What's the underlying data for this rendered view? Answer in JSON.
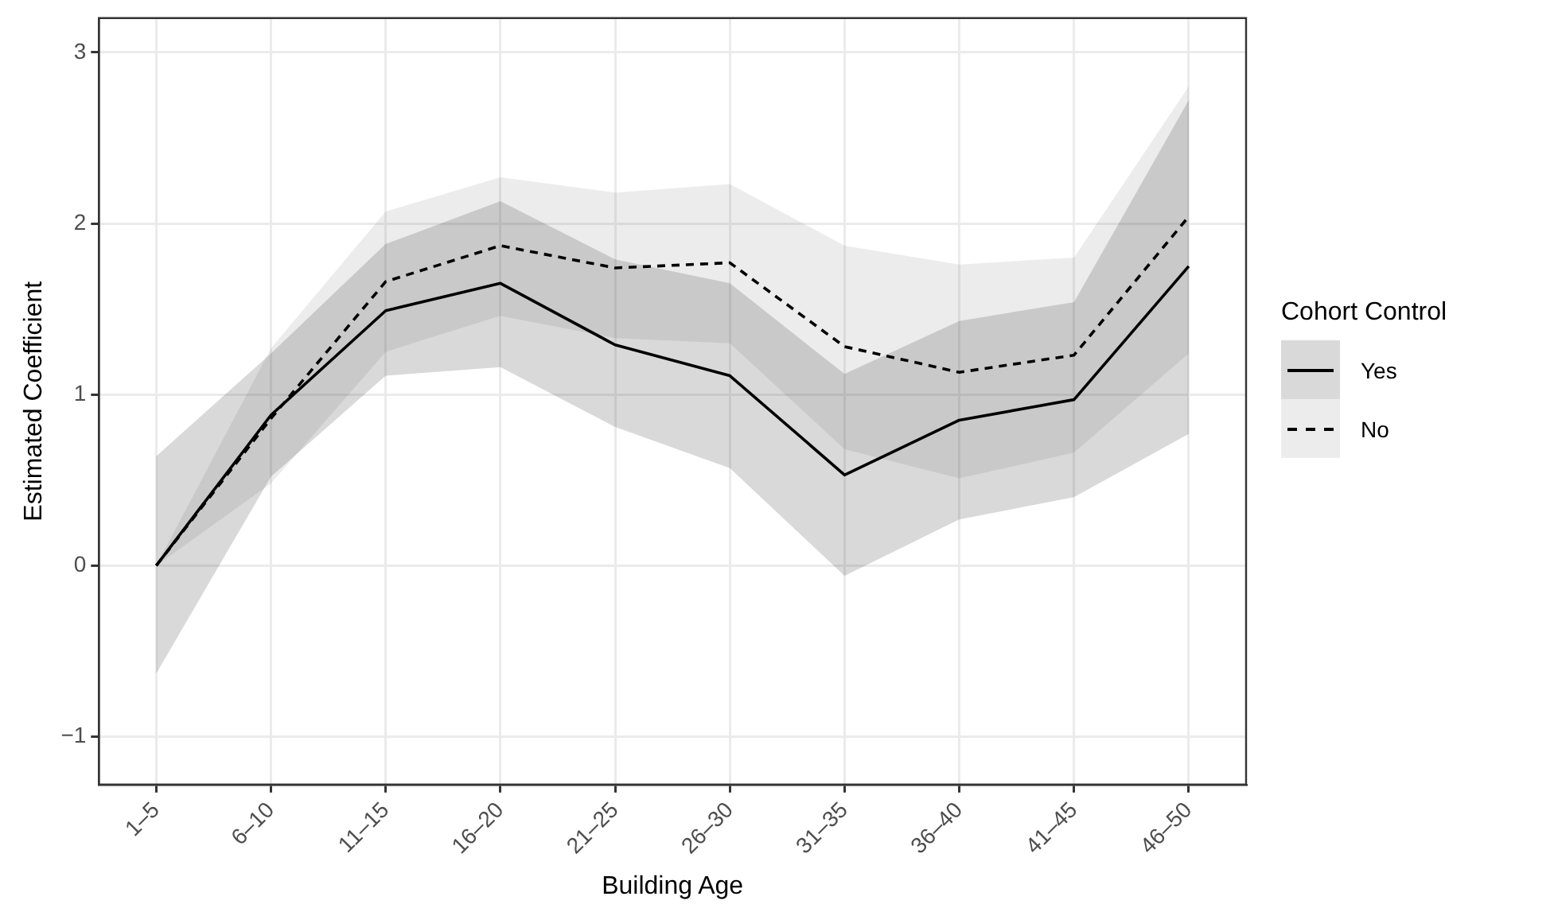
{
  "chart_data": {
    "type": "line",
    "xlabel": "Building Age",
    "ylabel": "Estimated Coefficient",
    "legend_title": "Cohort Control",
    "categories": [
      "1–5",
      "6–10",
      "11–15",
      "16–20",
      "21–25",
      "26–30",
      "31–35",
      "36–40",
      "41–45",
      "46–50"
    ],
    "series": [
      {
        "name": "Yes",
        "color": "#000000",
        "line_style": "solid",
        "values": [
          0,
          0.88,
          1.49,
          1.65,
          1.29,
          1.11,
          0.53,
          0.85,
          0.97,
          1.75
        ],
        "lower": [
          -0.63,
          0.52,
          1.11,
          1.16,
          0.81,
          0.57,
          -0.06,
          0.27,
          0.4,
          0.77
        ],
        "upper": [
          0.64,
          1.24,
          1.88,
          2.13,
          1.79,
          1.65,
          1.12,
          1.43,
          1.54,
          2.72
        ]
      },
      {
        "name": "No",
        "color": "#000000",
        "line_style": "dashed",
        "values": [
          0,
          0.86,
          1.66,
          1.87,
          1.74,
          1.77,
          1.28,
          1.13,
          1.23,
          2.04
        ],
        "lower": [
          0,
          0.48,
          1.25,
          1.46,
          1.33,
          1.3,
          0.68,
          0.51,
          0.66,
          1.24
        ],
        "upper": [
          0,
          1.27,
          2.07,
          2.27,
          2.18,
          2.23,
          1.87,
          1.76,
          1.8,
          2.8
        ]
      }
    ],
    "ylim": [
      -1.28,
      3.2
    ],
    "yticks": [
      -1,
      0,
      1,
      2,
      3
    ],
    "grid": true,
    "legend": "right",
    "marker": "none"
  }
}
